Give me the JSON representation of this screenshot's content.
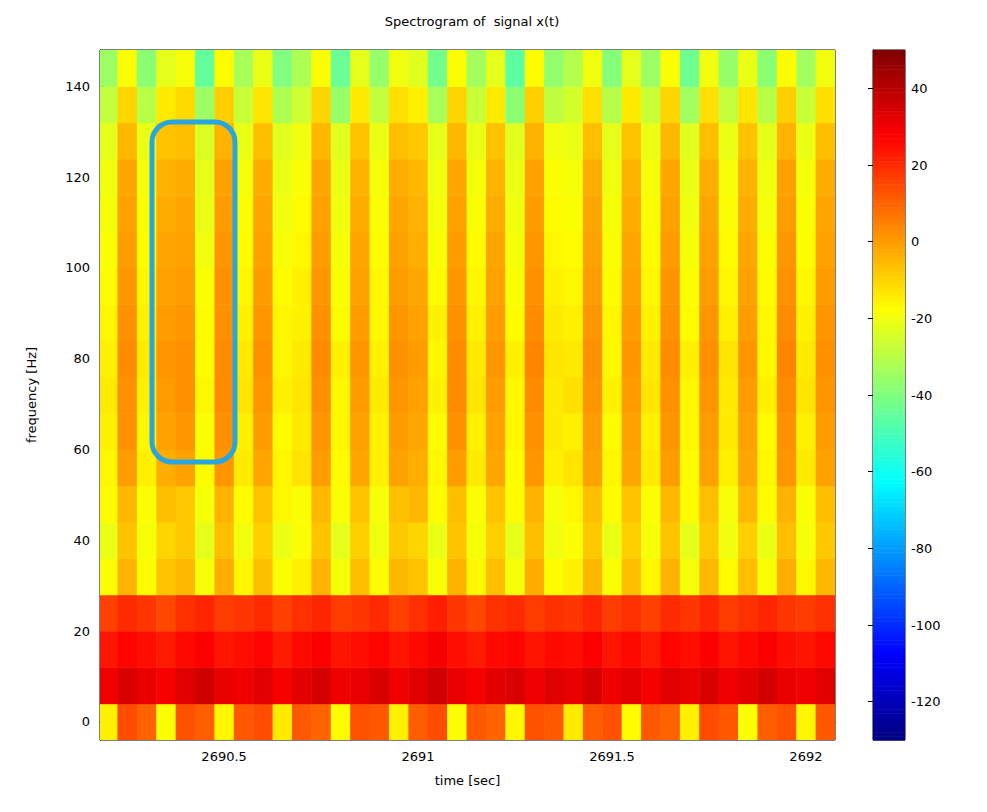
{
  "chart_data": {
    "type": "heatmap",
    "title": "Spectrogram of  signal x(t)",
    "x_label": "time [sec]",
    "y_label": "frequency [Hz]",
    "x": [
      2690.15,
      2690.2,
      2690.25,
      2690.3,
      2690.35,
      2690.4,
      2690.45,
      2690.5,
      2690.55,
      2690.6,
      2690.65,
      2690.7,
      2690.75,
      2690.8,
      2690.85,
      2690.9,
      2690.95,
      2691,
      2691.05,
      2691.1,
      2691.15,
      2691.2,
      2691.25,
      2691.3,
      2691.35,
      2691.4,
      2691.45,
      2691.5,
      2691.55,
      2691.6,
      2691.65,
      2691.7,
      2691.75,
      2691.8,
      2691.85,
      2691.9,
      2691.95,
      2692,
      2692.05
    ],
    "y": [
      0,
      8,
      16,
      24,
      32,
      40,
      48,
      56,
      64,
      72,
      80,
      88,
      96,
      104,
      112,
      120,
      128,
      136,
      144
    ],
    "values": [
      [
        12,
        -15,
        14,
        10,
        -18,
        13,
        11,
        -16,
        12,
        14,
        -14,
        12,
        10,
        -17,
        13,
        12,
        -15,
        11,
        14,
        -18,
        12,
        10,
        -16,
        13,
        12,
        -14,
        11,
        13,
        -17,
        12,
        10,
        -15,
        14,
        12,
        -18,
        11,
        13,
        -16,
        12
      ],
      [
        32,
        30,
        34,
        31,
        29,
        33,
        36,
        31,
        30,
        33,
        29,
        32,
        35,
        30,
        31,
        34,
        30,
        33,
        36,
        31,
        29,
        32,
        34,
        30,
        33,
        31,
        35,
        30,
        32,
        29,
        33,
        31,
        34,
        30,
        32,
        35,
        31,
        30,
        33
      ],
      [
        26,
        24,
        27,
        25,
        23,
        26,
        28,
        24,
        25,
        27,
        23,
        26,
        28,
        24,
        25,
        27,
        24,
        26,
        29,
        25,
        23,
        26,
        27,
        24,
        26,
        25,
        28,
        24,
        26,
        23,
        27,
        25,
        28,
        24,
        26,
        28,
        25,
        24,
        26
      ],
      [
        19,
        16,
        20,
        18,
        15,
        19,
        21,
        17,
        18,
        20,
        16,
        19,
        21,
        17,
        18,
        20,
        16,
        19,
        22,
        18,
        15,
        19,
        20,
        17,
        19,
        18,
        21,
        17,
        19,
        16,
        20,
        18,
        21,
        17,
        19,
        21,
        18,
        17,
        19
      ],
      [
        -6,
        -18,
        -4,
        -17,
        -7,
        -5,
        -19,
        -3,
        -16,
        -6,
        -18,
        -15,
        -4,
        -19,
        -6,
        -17,
        -5,
        -7,
        -18,
        -4,
        -16,
        -6,
        -19,
        -3,
        -17,
        -15,
        -5,
        -18,
        -6,
        -16,
        -4,
        -19,
        -5,
        -17,
        -6,
        -18,
        -3,
        -16,
        -5
      ],
      [
        -9,
        -21,
        -7,
        -19,
        -10,
        -8,
        -22,
        -6,
        -20,
        -9,
        -21,
        -18,
        -7,
        -22,
        -9,
        -20,
        -8,
        -10,
        -21,
        -7,
        -19,
        -9,
        -22,
        -6,
        -20,
        -18,
        -8,
        -21,
        -9,
        -19,
        -7,
        -22,
        -8,
        -20,
        -9,
        -21,
        -6,
        -19,
        -8
      ],
      [
        -7,
        -17,
        -5,
        -18,
        -6,
        -8,
        -19,
        -4,
        -17,
        -7,
        -16,
        -18,
        -5,
        -18,
        -7,
        -19,
        -6,
        -5,
        -17,
        -6,
        -18,
        -7,
        -17,
        -4,
        -19,
        -16,
        -6,
        -17,
        -7,
        -18,
        -5,
        -17,
        -6,
        -19,
        -5,
        -17,
        -4,
        -18,
        -6
      ],
      [
        -2,
        -16,
        0,
        -15,
        -3,
        -1,
        -17,
        1,
        -14,
        -2,
        -16,
        -13,
        0,
        -17,
        -2,
        -15,
        -1,
        -3,
        -16,
        0,
        -14,
        -2,
        -17,
        1,
        -15,
        -13,
        -1,
        -16,
        -2,
        -14,
        0,
        -17,
        -1,
        -15,
        -2,
        -16,
        1,
        -14,
        -1
      ],
      [
        0,
        -15,
        2,
        -16,
        -1,
        1,
        -18,
        2,
        -15,
        0,
        -17,
        -14,
        1,
        -16,
        -1,
        -15,
        0,
        -2,
        -17,
        2,
        -15,
        -1,
        -16,
        2,
        -14,
        -15,
        0,
        -17,
        -1,
        -15,
        1,
        -16,
        0,
        -14,
        -1,
        -17,
        2,
        -15,
        0
      ],
      [
        1,
        -14,
        2,
        -15,
        0,
        2,
        -16,
        3,
        -13,
        1,
        -15,
        -13,
        2,
        -16,
        0,
        -14,
        1,
        -1,
        -15,
        3,
        -13,
        0,
        -16,
        3,
        -14,
        -12,
        1,
        -15,
        0,
        -13,
        2,
        -16,
        1,
        -14,
        0,
        -15,
        3,
        -13,
        1
      ],
      [
        2,
        -15,
        3,
        -14,
        1,
        2,
        -17,
        3,
        -14,
        2,
        -16,
        -14,
        3,
        -15,
        1,
        -15,
        2,
        0,
        -16,
        3,
        -14,
        1,
        -15,
        4,
        -13,
        -14,
        2,
        -16,
        1,
        -14,
        3,
        -15,
        2,
        -13,
        1,
        -16,
        4,
        -14,
        2
      ],
      [
        1,
        -16,
        2,
        -15,
        0,
        1,
        -17,
        2,
        -15,
        1,
        -16,
        -15,
        2,
        -17,
        0,
        -16,
        1,
        -1,
        -15,
        2,
        -15,
        0,
        -17,
        3,
        -14,
        -15,
        1,
        -16,
        0,
        -15,
        2,
        -17,
        1,
        -15,
        0,
        -16,
        3,
        -15,
        1
      ],
      [
        0,
        -17,
        1,
        -16,
        -1,
        0,
        -18,
        2,
        -16,
        0,
        -17,
        -15,
        1,
        -18,
        -1,
        -16,
        0,
        -2,
        -17,
        1,
        -16,
        -1,
        -18,
        2,
        -15,
        -16,
        0,
        -17,
        -1,
        -16,
        1,
        -18,
        0,
        -16,
        -1,
        -17,
        2,
        -16,
        0
      ],
      [
        -1,
        -18,
        0,
        -17,
        -2,
        -1,
        -20,
        1,
        -17,
        -1,
        -19,
        -16,
        0,
        -19,
        -2,
        -17,
        -1,
        -3,
        -18,
        0,
        -17,
        -2,
        -19,
        1,
        -16,
        -17,
        -1,
        -18,
        -2,
        -17,
        0,
        -19,
        -1,
        -17,
        -2,
        -18,
        1,
        -17,
        -1
      ],
      [
        -2,
        -19,
        -1,
        -18,
        -3,
        -2,
        -21,
        0,
        -18,
        -2,
        -20,
        -17,
        -1,
        -20,
        -3,
        -18,
        -2,
        -4,
        -19,
        -1,
        -18,
        -3,
        -20,
        0,
        -17,
        -18,
        -2,
        -19,
        -3,
        -18,
        -1,
        -20,
        -2,
        -18,
        -3,
        -19,
        0,
        -18,
        -2
      ],
      [
        -3,
        -20,
        -2,
        -19,
        -4,
        -3,
        -22,
        -1,
        -19,
        -3,
        -21,
        -18,
        -2,
        -21,
        -4,
        -19,
        -3,
        -5,
        -20,
        -2,
        -19,
        -4,
        -21,
        -1,
        -18,
        -19,
        -3,
        -20,
        -4,
        -19,
        -2,
        -21,
        -3,
        -19,
        -4,
        -20,
        -1,
        -19,
        -3
      ],
      [
        -6,
        -22,
        -5,
        -21,
        -7,
        -6,
        -24,
        -4,
        -21,
        -6,
        -23,
        -20,
        -5,
        -23,
        -7,
        -21,
        -6,
        -8,
        -22,
        -5,
        -21,
        -7,
        -23,
        -4,
        -20,
        -21,
        -6,
        -22,
        -7,
        -21,
        -5,
        -23,
        -6,
        -21,
        -7,
        -22,
        -4,
        -21,
        -6
      ],
      [
        -12,
        -28,
        -10,
        -30,
        -14,
        -11,
        -35,
        -9,
        -27,
        -13,
        -32,
        -26,
        -10,
        -36,
        -14,
        -28,
        -12,
        -15,
        -33,
        -10,
        -27,
        -14,
        -38,
        -9,
        -29,
        -25,
        -12,
        -31,
        -14,
        -27,
        -10,
        -34,
        -12,
        -28,
        -13,
        -30,
        -9,
        -27,
        -12
      ],
      [
        -20,
        -35,
        -18,
        -38,
        -22,
        -19,
        -45,
        -17,
        -33,
        -21,
        -40,
        -32,
        -18,
        -44,
        -22,
        -36,
        -20,
        -23,
        -42,
        -18,
        -34,
        -22,
        -46,
        -17,
        -37,
        -31,
        -20,
        -39,
        -22,
        -35,
        -18,
        -43,
        -20,
        -36,
        -21,
        -38,
        -17,
        -34,
        -20
      ]
    ],
    "xlim": [
      2690.18,
      2692.075
    ],
    "xticks": [
      2690.5,
      2691,
      2691.5,
      2692
    ],
    "ylim": [
      -4,
      148
    ],
    "yticks": [
      0,
      20,
      40,
      60,
      80,
      100,
      120,
      140
    ],
    "color_range": [
      -130,
      50
    ],
    "color_ticks": [
      -120,
      -100,
      -80,
      -60,
      -40,
      -20,
      0,
      20,
      40
    ]
  }
}
